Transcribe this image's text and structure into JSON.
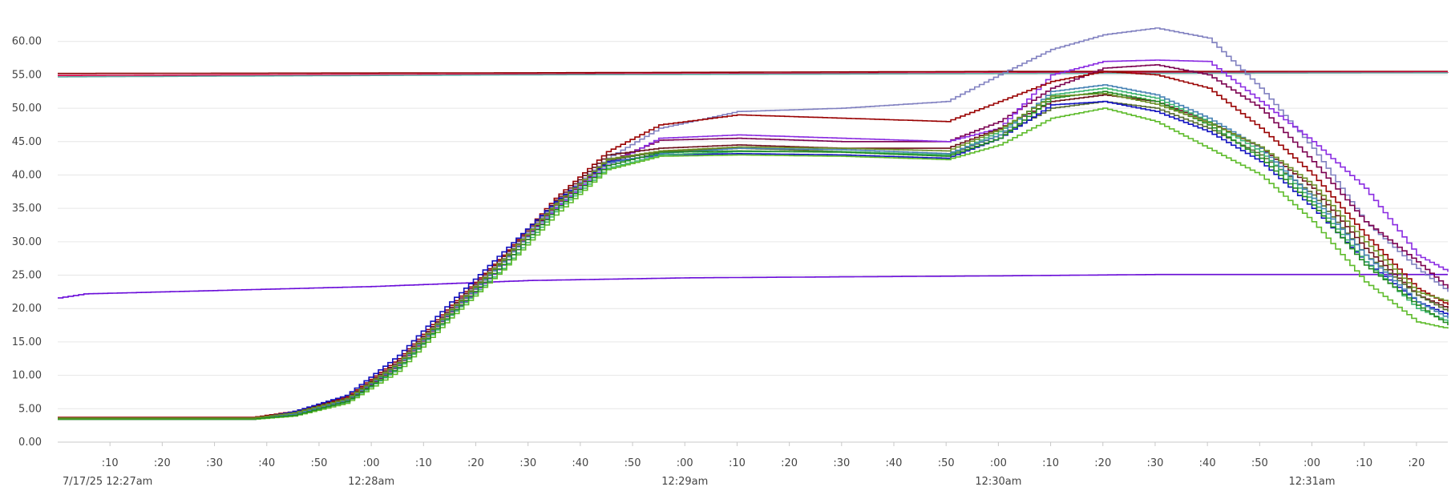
{
  "chart_data": {
    "type": "line",
    "title": "",
    "xlabel": "",
    "ylabel": "",
    "ylim": [
      0,
      65
    ],
    "xlim": [
      "2025-07-17 00:27:00",
      "2025-07-17 00:31:26"
    ],
    "grid": true,
    "legend": "none",
    "y_ticks": [
      "0.00",
      "5.00",
      "10.00",
      "15.00",
      "20.00",
      "25.00",
      "30.00",
      "35.00",
      "40.00",
      "45.00",
      "50.00",
      "55.00",
      "60.00"
    ],
    "x_ticks": [
      {
        "t": "2025-07-17 00:27:10",
        "label": ":10"
      },
      {
        "t": "2025-07-17 00:27:20",
        "label": ":20"
      },
      {
        "t": "2025-07-17 00:27:30",
        "label": ":30"
      },
      {
        "t": "2025-07-17 00:27:40",
        "label": ":40"
      },
      {
        "t": "2025-07-17 00:27:50",
        "label": ":50"
      },
      {
        "t": "2025-07-17 00:28:00",
        "label": ":00"
      },
      {
        "t": "2025-07-17 00:28:10",
        "label": ":10"
      },
      {
        "t": "2025-07-17 00:28:20",
        "label": ":20"
      },
      {
        "t": "2025-07-17 00:28:30",
        "label": ":30"
      },
      {
        "t": "2025-07-17 00:28:40",
        "label": ":40"
      },
      {
        "t": "2025-07-17 00:28:50",
        "label": ":50"
      },
      {
        "t": "2025-07-17 00:29:00",
        "label": ":00"
      },
      {
        "t": "2025-07-17 00:29:10",
        "label": ":10"
      },
      {
        "t": "2025-07-17 00:29:20",
        "label": ":20"
      },
      {
        "t": "2025-07-17 00:29:30",
        "label": ":30"
      },
      {
        "t": "2025-07-17 00:29:40",
        "label": ":40"
      },
      {
        "t": "2025-07-17 00:29:50",
        "label": ":50"
      },
      {
        "t": "2025-07-17 00:30:00",
        "label": ":00"
      },
      {
        "t": "2025-07-17 00:30:10",
        "label": ":10"
      },
      {
        "t": "2025-07-17 00:30:20",
        "label": ":20"
      },
      {
        "t": "2025-07-17 00:30:30",
        "label": ":30"
      },
      {
        "t": "2025-07-17 00:30:40",
        "label": ":40"
      },
      {
        "t": "2025-07-17 00:30:50",
        "label": ":50"
      },
      {
        "t": "2025-07-17 00:31:00",
        "label": ":00"
      },
      {
        "t": "2025-07-17 00:31:10",
        "label": ":10"
      },
      {
        "t": "2025-07-17 00:31:20",
        "label": ":20"
      }
    ],
    "x_major_labels": [
      {
        "t": "2025-07-17 00:27:00",
        "label": "7/17/25 12:27am"
      },
      {
        "t": "2025-07-17 00:28:00",
        "label": "12:28am"
      },
      {
        "t": "2025-07-17 00:29:00",
        "label": "12:29am"
      },
      {
        "t": "2025-07-17 00:30:00",
        "label": "12:30am"
      },
      {
        "t": "2025-07-17 00:31:00",
        "label": "12:31am"
      }
    ],
    "series": [
      {
        "color": "#8B0000",
        "x": [
          "2025-07-17 00:27:00",
          "2025-07-17 00:28:30",
          "2025-07-17 00:30:00",
          "2025-07-17 00:31:26"
        ],
        "y": [
          55.2,
          55.3,
          55.5,
          55.5
        ]
      },
      {
        "color": "#E0004A",
        "x": [
          "2025-07-17 00:27:00",
          "2025-07-17 00:28:30",
          "2025-07-17 00:30:00",
          "2025-07-17 00:31:26"
        ],
        "y": [
          54.9,
          55.1,
          55.3,
          55.4
        ]
      },
      {
        "color": "#5FA8A0",
        "x": [
          "2025-07-17 00:27:00",
          "2025-07-17 00:28:30",
          "2025-07-17 00:30:00",
          "2025-07-17 00:31:26"
        ],
        "y": [
          54.7,
          55.0,
          55.2,
          55.3
        ]
      },
      {
        "color": "#6A0DD9",
        "x": [
          "2025-07-17 00:27:00",
          "2025-07-17 00:27:05",
          "2025-07-17 00:28:00",
          "2025-07-17 00:28:30",
          "2025-07-17 00:29:00",
          "2025-07-17 00:30:00",
          "2025-07-17 00:30:30",
          "2025-07-17 00:31:26"
        ],
        "y": [
          21.6,
          22.2,
          23.3,
          24.2,
          24.6,
          24.9,
          25.1,
          25.1
        ]
      },
      {
        "color": "#8080C0",
        "x": [
          "2025-07-17 00:27:00",
          "2025-07-17 00:27:37",
          "2025-07-17 00:27:45",
          "2025-07-17 00:27:55",
          "2025-07-17 00:28:05",
          "2025-07-17 00:28:15",
          "2025-07-17 00:28:25",
          "2025-07-17 00:28:35",
          "2025-07-17 00:28:45",
          "2025-07-17 00:28:55",
          "2025-07-17 00:29:10",
          "2025-07-17 00:29:30",
          "2025-07-17 00:29:50",
          "2025-07-17 00:30:00",
          "2025-07-17 00:30:10",
          "2025-07-17 00:30:20",
          "2025-07-17 00:30:30",
          "2025-07-17 00:30:40",
          "2025-07-17 00:30:50",
          "2025-07-17 00:31:00",
          "2025-07-17 00:31:10",
          "2025-07-17 00:31:20",
          "2025-07-17 00:31:26"
        ],
        "y": [
          3.4,
          3.4,
          4.4,
          6.5,
          12.0,
          20.0,
          27.5,
          36.0,
          42.5,
          47.0,
          49.5,
          50.0,
          51.0,
          55.0,
          58.8,
          61.0,
          62.0,
          60.5,
          53.0,
          44.0,
          33.0,
          26.0,
          22.5
        ]
      },
      {
        "color": "#7B0050",
        "x": [
          "2025-07-17 00:27:00",
          "2025-07-17 00:27:37",
          "2025-07-17 00:27:45",
          "2025-07-17 00:27:55",
          "2025-07-17 00:28:05",
          "2025-07-17 00:28:15",
          "2025-07-17 00:28:25",
          "2025-07-17 00:28:35",
          "2025-07-17 00:28:45",
          "2025-07-17 00:28:55",
          "2025-07-17 00:29:10",
          "2025-07-17 00:29:30",
          "2025-07-17 00:29:50",
          "2025-07-17 00:30:00",
          "2025-07-17 00:30:10",
          "2025-07-17 00:30:20",
          "2025-07-17 00:30:30",
          "2025-07-17 00:30:40",
          "2025-07-17 00:30:50",
          "2025-07-17 00:31:00",
          "2025-07-17 00:31:10",
          "2025-07-17 00:31:20",
          "2025-07-17 00:31:26"
        ],
        "y": [
          3.5,
          3.5,
          4.2,
          6.2,
          11.5,
          19.5,
          27.0,
          35.5,
          42.0,
          45.2,
          45.5,
          45.0,
          45.0,
          48.0,
          53.0,
          56.0,
          56.5,
          55.0,
          50.0,
          42.0,
          33.0,
          27.0,
          23.0
        ]
      },
      {
        "color": "#8A2BE2",
        "x": [
          "2025-07-17 00:27:00",
          "2025-07-17 00:27:37",
          "2025-07-17 00:27:45",
          "2025-07-17 00:27:55",
          "2025-07-17 00:28:05",
          "2025-07-17 00:28:15",
          "2025-07-17 00:28:25",
          "2025-07-17 00:28:35",
          "2025-07-17 00:28:45",
          "2025-07-17 00:28:55",
          "2025-07-17 00:29:10",
          "2025-07-17 00:29:30",
          "2025-07-17 00:29:50",
          "2025-07-17 00:30:00",
          "2025-07-17 00:30:10",
          "2025-07-17 00:30:20",
          "2025-07-17 00:30:30",
          "2025-07-17 00:30:40",
          "2025-07-17 00:30:50",
          "2025-07-17 00:31:00",
          "2025-07-17 00:31:10",
          "2025-07-17 00:31:20",
          "2025-07-17 00:31:26"
        ],
        "y": [
          3.4,
          3.4,
          4.0,
          6.0,
          11.0,
          19.0,
          26.5,
          35.0,
          41.5,
          45.5,
          46.0,
          45.5,
          45.0,
          47.0,
          55.0,
          57.0,
          57.2,
          57.0,
          51.0,
          45.0,
          38.0,
          28.0,
          25.5
        ]
      },
      {
        "color": "#990000",
        "x": [
          "2025-07-17 00:27:00",
          "2025-07-17 00:27:37",
          "2025-07-17 00:27:45",
          "2025-07-17 00:27:55",
          "2025-07-17 00:28:05",
          "2025-07-17 00:28:15",
          "2025-07-17 00:28:25",
          "2025-07-17 00:28:35",
          "2025-07-17 00:28:45",
          "2025-07-17 00:28:55",
          "2025-07-17 00:29:10",
          "2025-07-17 00:29:30",
          "2025-07-17 00:29:50",
          "2025-07-17 00:30:00",
          "2025-07-17 00:30:10",
          "2025-07-17 00:30:20",
          "2025-07-17 00:30:30",
          "2025-07-17 00:30:40",
          "2025-07-17 00:30:50",
          "2025-07-17 00:31:00",
          "2025-07-17 00:31:10",
          "2025-07-17 00:31:20",
          "2025-07-17 00:31:26"
        ],
        "y": [
          3.7,
          3.7,
          4.6,
          6.8,
          12.5,
          20.5,
          28.0,
          36.5,
          43.5,
          47.5,
          49.0,
          48.5,
          48.0,
          51.0,
          54.0,
          55.5,
          55.0,
          53.0,
          47.0,
          40.0,
          31.0,
          23.0,
          20.5
        ]
      },
      {
        "color": "#6B0F1A",
        "x": [
          "2025-07-17 00:27:00",
          "2025-07-17 00:27:37",
          "2025-07-17 00:27:45",
          "2025-07-17 00:27:55",
          "2025-07-17 00:28:05",
          "2025-07-17 00:28:15",
          "2025-07-17 00:28:25",
          "2025-07-17 00:28:35",
          "2025-07-17 00:28:45",
          "2025-07-17 00:28:55",
          "2025-07-17 00:29:10",
          "2025-07-17 00:29:30",
          "2025-07-17 00:29:50",
          "2025-07-17 00:30:00",
          "2025-07-17 00:30:10",
          "2025-07-17 00:30:20",
          "2025-07-17 00:30:30",
          "2025-07-17 00:30:40",
          "2025-07-17 00:30:50",
          "2025-07-17 00:31:00",
          "2025-07-17 00:31:10",
          "2025-07-17 00:31:20",
          "2025-07-17 00:31:26"
        ],
        "y": [
          3.6,
          3.6,
          4.5,
          6.6,
          12.2,
          20.2,
          27.8,
          36.2,
          43.0,
          44.0,
          44.5,
          44.0,
          44.0,
          47.0,
          51.0,
          52.0,
          51.0,
          48.0,
          44.0,
          38.0,
          29.0,
          22.0,
          20.0
        ]
      },
      {
        "color": "#556B2F",
        "x": [
          "2025-07-17 00:27:00",
          "2025-07-17 00:27:37",
          "2025-07-17 00:27:45",
          "2025-07-17 00:27:55",
          "2025-07-17 00:28:05",
          "2025-07-17 00:28:15",
          "2025-07-17 00:28:25",
          "2025-07-17 00:28:35",
          "2025-07-17 00:28:45",
          "2025-07-17 00:28:55",
          "2025-07-17 00:29:10",
          "2025-07-17 00:29:30",
          "2025-07-17 00:29:50",
          "2025-07-17 00:30:00",
          "2025-07-17 00:30:10",
          "2025-07-17 00:30:20",
          "2025-07-17 00:30:30",
          "2025-07-17 00:30:40",
          "2025-07-17 00:30:50",
          "2025-07-17 00:31:00",
          "2025-07-17 00:31:10",
          "2025-07-17 00:31:20",
          "2025-07-17 00:31:26"
        ],
        "y": [
          3.5,
          3.5,
          4.3,
          6.4,
          11.8,
          19.8,
          27.2,
          35.8,
          42.2,
          43.5,
          44.0,
          43.5,
          43.0,
          46.0,
          50.0,
          51.0,
          50.0,
          47.0,
          43.0,
          37.0,
          28.0,
          22.0,
          19.5
        ]
      },
      {
        "color": "#1010C0",
        "x": [
          "2025-07-17 00:27:00",
          "2025-07-17 00:27:37",
          "2025-07-17 00:27:45",
          "2025-07-17 00:27:55",
          "2025-07-17 00:28:05",
          "2025-07-17 00:28:15",
          "2025-07-17 00:28:25",
          "2025-07-17 00:28:35",
          "2025-07-17 00:28:45",
          "2025-07-17 00:28:55",
          "2025-07-17 00:29:10",
          "2025-07-17 00:29:30",
          "2025-07-17 00:29:50",
          "2025-07-17 00:30:00",
          "2025-07-17 00:30:10",
          "2025-07-17 00:30:20",
          "2025-07-17 00:30:30",
          "2025-07-17 00:30:40",
          "2025-07-17 00:30:50",
          "2025-07-17 00:31:00",
          "2025-07-17 00:31:10",
          "2025-07-17 00:31:20",
          "2025-07-17 00:31:26"
        ],
        "y": [
          3.4,
          3.4,
          4.6,
          7.0,
          13.0,
          21.0,
          28.5,
          36.0,
          42.0,
          43.0,
          43.2,
          43.0,
          42.5,
          45.5,
          50.5,
          51.0,
          49.5,
          46.5,
          42.0,
          35.0,
          27.0,
          21.0,
          19.0
        ]
      },
      {
        "color": "#3CB371",
        "x": [
          "2025-07-17 00:27:00",
          "2025-07-17 00:27:37",
          "2025-07-17 00:27:45",
          "2025-07-17 00:27:55",
          "2025-07-17 00:28:05",
          "2025-07-17 00:28:15",
          "2025-07-17 00:28:25",
          "2025-07-17 00:28:35",
          "2025-07-17 00:28:45",
          "2025-07-17 00:28:55",
          "2025-07-17 00:29:10",
          "2025-07-17 00:29:30",
          "2025-07-17 00:29:50",
          "2025-07-17 00:30:00",
          "2025-07-17 00:30:10",
          "2025-07-17 00:30:20",
          "2025-07-17 00:30:30",
          "2025-07-17 00:30:40",
          "2025-07-17 00:30:50",
          "2025-07-17 00:31:00",
          "2025-07-17 00:31:10",
          "2025-07-17 00:31:20",
          "2025-07-17 00:31:26"
        ],
        "y": [
          3.6,
          3.6,
          4.1,
          6.0,
          11.0,
          19.0,
          26.0,
          34.5,
          41.0,
          43.0,
          43.5,
          43.5,
          43.0,
          46.5,
          52.0,
          53.0,
          51.5,
          48.0,
          43.5,
          36.0,
          27.0,
          20.0,
          18.0
        ]
      },
      {
        "color": "#4682B4",
        "x": [
          "2025-07-17 00:27:00",
          "2025-07-17 00:27:37",
          "2025-07-17 00:27:45",
          "2025-07-17 00:27:55",
          "2025-07-17 00:28:05",
          "2025-07-17 00:28:15",
          "2025-07-17 00:28:25",
          "2025-07-17 00:28:35",
          "2025-07-17 00:28:45",
          "2025-07-17 00:28:55",
          "2025-07-17 00:29:10",
          "2025-07-17 00:29:30",
          "2025-07-17 00:29:50",
          "2025-07-17 00:30:00",
          "2025-07-17 00:30:10",
          "2025-07-17 00:30:20",
          "2025-07-17 00:30:30",
          "2025-07-17 00:30:40",
          "2025-07-17 00:30:50",
          "2025-07-17 00:31:00",
          "2025-07-17 00:31:10",
          "2025-07-17 00:31:20",
          "2025-07-17 00:31:26"
        ],
        "y": [
          3.5,
          3.5,
          4.2,
          6.3,
          11.6,
          19.6,
          27.0,
          35.2,
          41.8,
          43.2,
          44.0,
          43.8,
          43.2,
          46.0,
          52.5,
          53.5,
          52.0,
          48.5,
          44.0,
          36.5,
          28.0,
          21.0,
          18.5
        ]
      },
      {
        "color": "#5DBB2A",
        "x": [
          "2025-07-17 00:27:00",
          "2025-07-17 00:27:37",
          "2025-07-17 00:27:45",
          "2025-07-17 00:27:55",
          "2025-07-17 00:28:05",
          "2025-07-17 00:28:15",
          "2025-07-17 00:28:25",
          "2025-07-17 00:28:35",
          "2025-07-17 00:28:45",
          "2025-07-17 00:28:55",
          "2025-07-17 00:29:10",
          "2025-07-17 00:29:30",
          "2025-07-17 00:29:50",
          "2025-07-17 00:30:00",
          "2025-07-17 00:30:10",
          "2025-07-17 00:30:20",
          "2025-07-17 00:30:30",
          "2025-07-17 00:30:40",
          "2025-07-17 00:30:50",
          "2025-07-17 00:31:00",
          "2025-07-17 00:31:10",
          "2025-07-17 00:31:20",
          "2025-07-17 00:31:26"
        ],
        "y": [
          3.4,
          3.4,
          3.9,
          5.8,
          10.6,
          18.6,
          25.8,
          34.0,
          40.8,
          42.8,
          43.0,
          42.8,
          42.3,
          44.5,
          48.5,
          50.0,
          48.0,
          44.0,
          40.0,
          33.0,
          24.0,
          18.0,
          17.0
        ]
      },
      {
        "color": "#228B22",
        "x": [
          "2025-07-17 00:27:00",
          "2025-07-17 00:27:37",
          "2025-07-17 00:27:45",
          "2025-07-17 00:27:55",
          "2025-07-17 00:28:05",
          "2025-07-17 00:28:15",
          "2025-07-17 00:28:25",
          "2025-07-17 00:28:35",
          "2025-07-17 00:28:45",
          "2025-07-17 00:28:55",
          "2025-07-17 00:29:10",
          "2025-07-17 00:29:30",
          "2025-07-17 00:29:50",
          "2025-07-17 00:30:00",
          "2025-07-17 00:30:10",
          "2025-07-17 00:30:20",
          "2025-07-17 00:30:30",
          "2025-07-17 00:30:40",
          "2025-07-17 00:30:50",
          "2025-07-17 00:31:00",
          "2025-07-17 00:31:10",
          "2025-07-17 00:31:20",
          "2025-07-17 00:31:26"
        ],
        "y": [
          3.5,
          3.5,
          4.0,
          6.1,
          11.2,
          19.2,
          26.6,
          34.8,
          41.4,
          43.4,
          43.6,
          43.4,
          42.8,
          45.5,
          51.5,
          52.5,
          51.0,
          47.5,
          42.5,
          35.5,
          26.5,
          20.5,
          17.5
        ]
      },
      {
        "color": "#6B8E23",
        "x": [
          "2025-07-17 00:27:00",
          "2025-07-17 00:27:37",
          "2025-07-17 00:27:45",
          "2025-07-17 00:27:55",
          "2025-07-17 00:28:05",
          "2025-07-17 00:28:15",
          "2025-07-17 00:28:25",
          "2025-07-17 00:28:35",
          "2025-07-17 00:28:45",
          "2025-07-17 00:28:55",
          "2025-07-17 00:29:10",
          "2025-07-17 00:29:30",
          "2025-07-17 00:29:50",
          "2025-07-17 00:30:00",
          "2025-07-17 00:30:10",
          "2025-07-17 00:30:20",
          "2025-07-17 00:30:30",
          "2025-07-17 00:30:40",
          "2025-07-17 00:30:50",
          "2025-07-17 00:31:00",
          "2025-07-17 00:31:10",
          "2025-07-17 00:31:20",
          "2025-07-17 00:31:26"
        ],
        "y": [
          3.6,
          3.6,
          4.4,
          6.5,
          11.9,
          19.9,
          27.4,
          35.6,
          42.4,
          43.6,
          44.2,
          44.0,
          43.6,
          46.8,
          51.8,
          52.2,
          50.6,
          47.8,
          44.2,
          38.5,
          30.0,
          22.5,
          21.0
        ]
      }
    ]
  }
}
